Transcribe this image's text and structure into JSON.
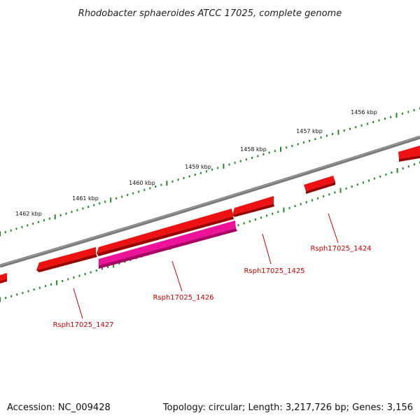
{
  "title": "Rhodobacter sphaeroides ATCC 17025, complete genome",
  "footer": {
    "accession": "Accession: NC_009428",
    "summary": "Topology: circular; Length: 3,217,726 bp; Genes: 3,156"
  },
  "scale": {
    "labels": [
      "1456 kbp",
      "1457 kbp",
      "1458 kbp",
      "1459 kbp",
      "1460 kbp",
      "1461 kbp",
      "1462 kbp"
    ]
  },
  "genes": [
    {
      "label": "Rsph17025_1424"
    },
    {
      "label": "Rsph17025_1425"
    },
    {
      "label": "Rsph17025_1426"
    },
    {
      "label": "Rsph17025_1427"
    }
  ],
  "colors": {
    "backbone": "#808080",
    "gene_red": "#ee1111",
    "gene_pink": "#ee1199",
    "ruler": "#228822",
    "label": "#cc0000"
  }
}
